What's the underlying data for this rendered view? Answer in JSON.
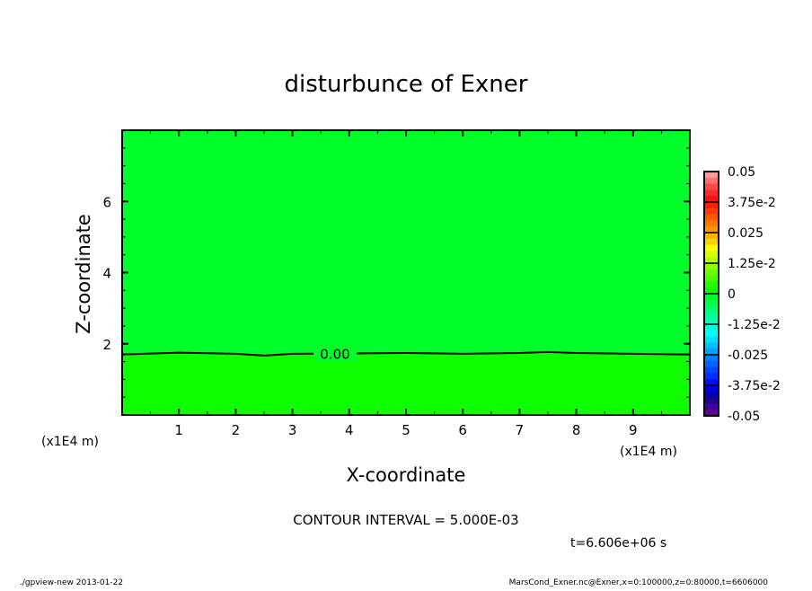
{
  "chart_data": {
    "type": "heatmap",
    "title": "disturbunce of Exner",
    "xlabel": "X-coordinate",
    "ylabel": "Z-coordinate",
    "x_unit": "(x1E4 m)",
    "x_unit_right": "(x1E4 m)",
    "xlim": [
      0,
      10
    ],
    "ylim": [
      0,
      8
    ],
    "xticks": [
      "1",
      "2",
      "3",
      "4",
      "5",
      "6",
      "7",
      "8",
      "9"
    ],
    "yticks": [
      "2",
      "4",
      "6"
    ],
    "contour_label": "0.00",
    "contour_zero_z": [
      [
        0,
        1.7
      ],
      [
        1,
        1.75
      ],
      [
        2,
        1.72
      ],
      [
        2.5,
        1.67
      ],
      [
        3,
        1.72
      ],
      [
        4,
        1.73
      ],
      [
        5,
        1.74
      ],
      [
        6,
        1.72
      ],
      [
        7,
        1.74
      ],
      [
        7.5,
        1.77
      ],
      [
        8,
        1.74
      ],
      [
        9,
        1.72
      ],
      [
        10,
        1.7
      ]
    ],
    "region_colors": {
      "above_contour": "#00ff2a",
      "below_contour": "#10ff00"
    },
    "colorbar": {
      "range": [
        -0.05,
        0.05
      ],
      "labels": [
        "0.05",
        "3.75e-2",
        "0.025",
        "1.25e-2",
        "0",
        "-1.25e-2",
        "-0.025",
        "-3.75e-2",
        "-0.05"
      ],
      "colors_top_to_bottom": [
        "#ff9a9a",
        "#ff7070",
        "#ff4848",
        "#ff2a2a",
        "#ff1010",
        "#ff2000",
        "#ff3c00",
        "#ff5a00",
        "#ff7800",
        "#ff9600",
        "#ffb400",
        "#ffd200",
        "#ffff00",
        "#d8ff00",
        "#b4ff00",
        "#90ff00",
        "#6cff00",
        "#48ff00",
        "#24ff00",
        "#10ff00",
        "#00ff2a",
        "#00ff48",
        "#00ff6c",
        "#00ff90",
        "#00ffb4",
        "#00ffd8",
        "#00ffff",
        "#00e0ff",
        "#00c0ff",
        "#00a0ff",
        "#0080ff",
        "#0064ff",
        "#0048ff",
        "#002cff",
        "#0010ff",
        "#0000e0",
        "#0000b0",
        "#200090",
        "#4000a0",
        "#6000a0"
      ]
    },
    "contour_interval": "CONTOUR INTERVAL = 5.000E-03",
    "time_label": "t=6.606e+06 s"
  },
  "footer": {
    "left": "./gpview-new  2013-01-22",
    "right": "MarsCond_Exner.nc@Exner,x=0:100000,z=0:80000,t=6606000"
  }
}
